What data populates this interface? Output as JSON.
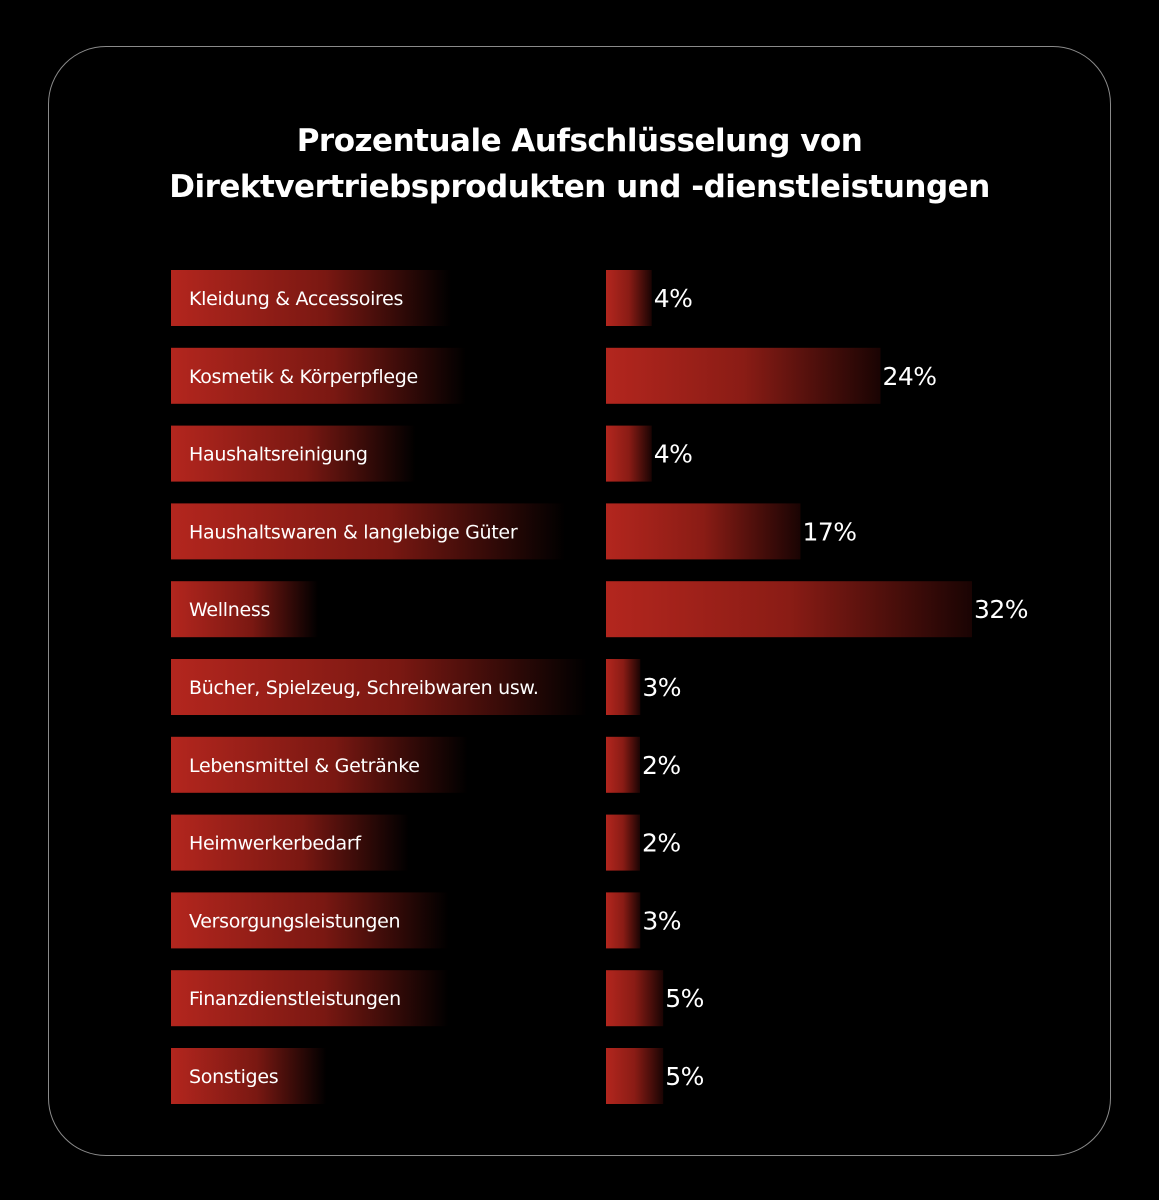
{
  "chart_data": {
    "type": "bar",
    "orientation": "horizontal",
    "title_lines": [
      "Prozentuale Aufschlüsselung von",
      "Direktvertriebsprodukten und -dienstleistungen"
    ],
    "categories": [
      "Kleidung & Accessoires",
      "Kosmetik & Körperpflege",
      "Haushaltsreinigung",
      "Haushaltswaren & langlebige Güter",
      "Wellness",
      "Bücher, Spielzeug, Schreibwaren usw.",
      "Lebensmittel & Getränke",
      "Heimwerkerbedarf",
      "Versorgungsleistungen",
      "Finanzdienstleistungen",
      "Sonstiges"
    ],
    "values": [
      4,
      24,
      4,
      17,
      32,
      3,
      2,
      2,
      3,
      5,
      5
    ],
    "value_labels": [
      "4%",
      "24%",
      "4%",
      "17%",
      "32%",
      "3%",
      "2%",
      "2%",
      "3%",
      "5%",
      "5%"
    ],
    "unit": "%",
    "xlim": [
      0,
      32
    ],
    "grid": false,
    "legend": "none",
    "colors": {
      "bar_start": "#b3261e",
      "bar_end": "#000000",
      "text": "#ffffff",
      "background": "#000000",
      "card_border": "#8a8a8a"
    }
  }
}
